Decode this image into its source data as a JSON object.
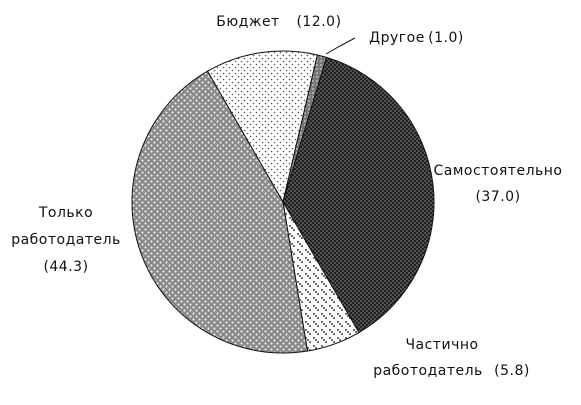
{
  "chart_data": {
    "type": "pie",
    "categories": [
      "Бюджет",
      "Другое",
      "Самостоятельно",
      "Частично работодатель",
      "Только работодатель"
    ],
    "values": [
      12.0,
      1.0,
      37.0,
      5.8,
      44.3
    ],
    "value_labels": [
      "(12.0)",
      "(1.0)",
      "(37.0)",
      "(5.8)",
      "(44.3)"
    ]
  }
}
